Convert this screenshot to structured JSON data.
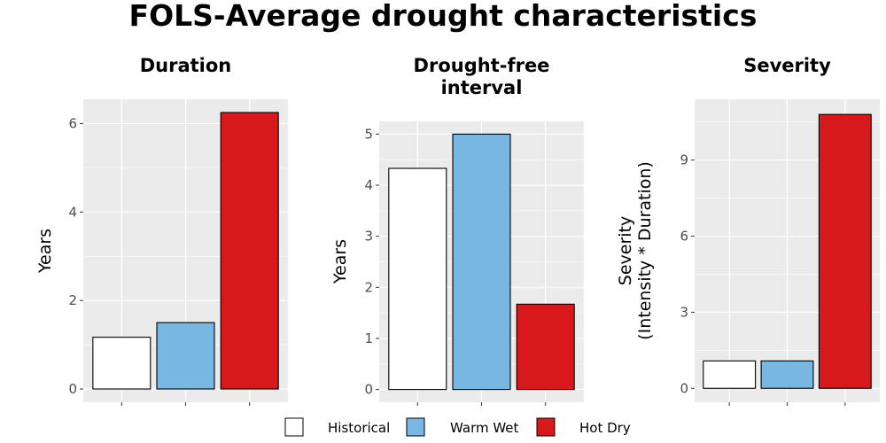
{
  "title": "FOLS-Average drought characteristics",
  "legend": {
    "position": "bottom",
    "items": [
      {
        "label": "Historical",
        "color": "#ffffff"
      },
      {
        "label": "Warm Wet",
        "color": "#77b7e1"
      },
      {
        "label": "Hot Dry",
        "color": "#d7191c"
      }
    ]
  },
  "colors": {
    "panel_background": "#ebebeb",
    "grid": "#ffffff",
    "bar_outline": "#000000"
  },
  "chart_data": [
    {
      "type": "bar",
      "title": [
        "Duration"
      ],
      "ylabel": [
        "Years"
      ],
      "categories": [
        "Historical",
        "Warm Wet",
        "Hot Dry"
      ],
      "values": [
        1.17,
        1.5,
        6.25
      ],
      "ylim": [
        -0.3,
        6.55
      ],
      "yticks": [
        0,
        2,
        4,
        6
      ],
      "ytick_labels": [
        "0",
        "2",
        "4",
        "6"
      ],
      "grid": true
    },
    {
      "type": "bar",
      "title": [
        "Drought-free",
        "interval"
      ],
      "ylabel": [
        "Years"
      ],
      "categories": [
        "Historical",
        "Warm Wet",
        "Hot Dry"
      ],
      "values": [
        4.33,
        5.0,
        1.67
      ],
      "ylim": [
        -0.25,
        5.25
      ],
      "yticks": [
        0,
        1,
        2,
        3,
        4,
        5
      ],
      "ytick_labels": [
        "0",
        "1",
        "2",
        "3",
        "4",
        "5"
      ],
      "grid": true
    },
    {
      "type": "bar",
      "title": [
        "Severity"
      ],
      "ylabel": [
        "Severity",
        "(Intensity * Duration)"
      ],
      "categories": [
        "Historical",
        "Warm Wet",
        "Hot Dry"
      ],
      "values": [
        1.08,
        1.08,
        10.8
      ],
      "ylim": [
        -0.55,
        11.4
      ],
      "yticks": [
        0,
        3,
        6,
        9
      ],
      "ytick_labels": [
        "0",
        "3",
        "6",
        "9"
      ],
      "grid": true
    }
  ]
}
